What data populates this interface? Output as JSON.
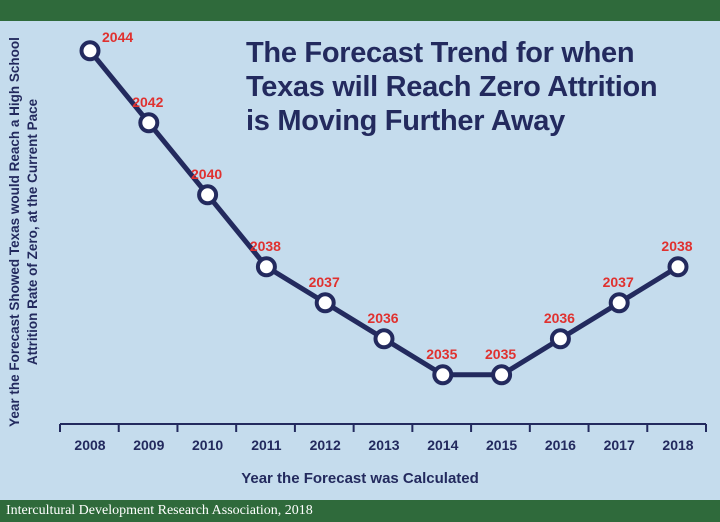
{
  "colors": {
    "background": "#c5dced",
    "bar_green": "#2f6a3b",
    "navy": "#232a5e",
    "label_red": "#e0312f",
    "marker_fill": "#ffffff"
  },
  "footer": {
    "text": "Intercultural Development Research Association, 2018"
  },
  "chart_data": {
    "type": "line",
    "title_lines": [
      "The Forecast Trend for when",
      "Texas will Reach Zero Attrition",
      "is Moving Further Away"
    ],
    "xlabel": "Year the Forecast was Calculated",
    "ylabel": "Year the Forecast Showed Texas would Reach a High School Attrition Rate of Zero, at the Current Pace",
    "x": [
      "2008",
      "2009",
      "2010",
      "2011",
      "2012",
      "2013",
      "2014",
      "2015",
      "2016",
      "2017",
      "2018"
    ],
    "series": [
      {
        "values": [
          2044,
          2042,
          2040,
          2038,
          2037,
          2036,
          2035,
          2035,
          2036,
          2037,
          2038
        ]
      }
    ],
    "data_labels": [
      "2044",
      "2042",
      "2040",
      "2038",
      "2037",
      "2036",
      "2035",
      "2035",
      "2036",
      "2037",
      "2038"
    ],
    "ylim": [
      2034.3,
      2044.3
    ],
    "grid": false,
    "legend": "none",
    "markers": "hollow-circle"
  }
}
